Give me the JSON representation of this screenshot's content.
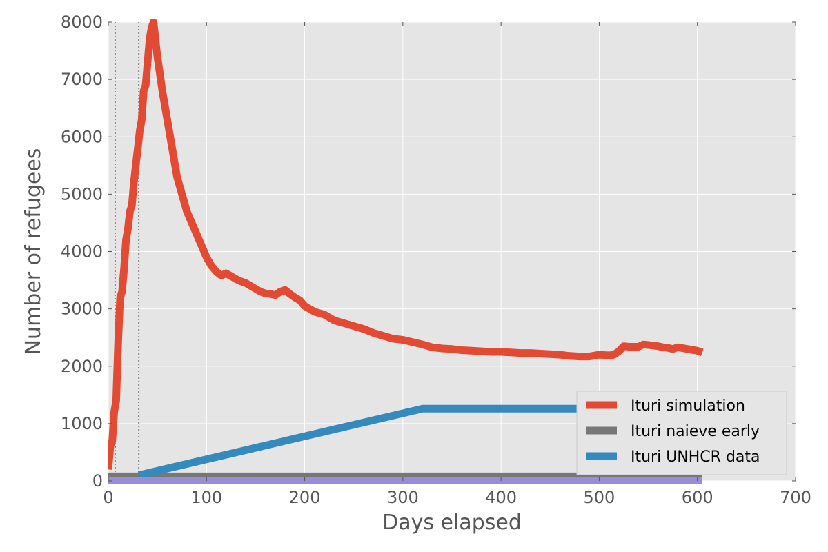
{
  "chart_data": {
    "type": "line",
    "title": "",
    "xlabel": "Days elapsed",
    "ylabel": "Number of refugees",
    "xlim": [
      0,
      700
    ],
    "ylim": [
      0,
      8000
    ],
    "xticks": [
      "0",
      "100",
      "200",
      "300",
      "400",
      "500",
      "600",
      "700"
    ],
    "yticks": [
      "0",
      "1000",
      "2000",
      "3000",
      "4000",
      "5000",
      "6000",
      "7000",
      "8000"
    ],
    "grid": true,
    "legend_position": "bottom-right",
    "vlines": [
      7,
      31
    ],
    "series": [
      {
        "name": "Ituri simulation",
        "color": "#e24a33",
        "x": [
          0,
          2,
          4,
          6,
          8,
          10,
          12,
          14,
          16,
          18,
          20,
          22,
          24,
          26,
          28,
          30,
          32,
          34,
          36,
          38,
          40,
          42,
          44,
          46,
          48,
          50,
          55,
          60,
          65,
          70,
          75,
          80,
          85,
          90,
          95,
          100,
          105,
          110,
          115,
          120,
          125,
          130,
          135,
          140,
          145,
          150,
          155,
          160,
          165,
          170,
          175,
          180,
          185,
          190,
          195,
          200,
          210,
          220,
          230,
          240,
          250,
          260,
          270,
          280,
          290,
          300,
          310,
          320,
          330,
          340,
          350,
          360,
          370,
          380,
          390,
          400,
          410,
          420,
          430,
          440,
          450,
          460,
          470,
          480,
          490,
          500,
          510,
          515,
          520,
          525,
          530,
          535,
          540,
          545,
          550,
          555,
          560,
          565,
          570,
          575,
          580,
          590,
          600,
          605
        ],
        "y": [
          200,
          600,
          700,
          1200,
          1400,
          2400,
          3200,
          3300,
          3700,
          4200,
          4400,
          4700,
          4800,
          5200,
          5500,
          5800,
          6100,
          6300,
          6800,
          6900,
          7300,
          7700,
          7900,
          8000,
          7700,
          7400,
          6800,
          6300,
          5800,
          5300,
          5000,
          4700,
          4500,
          4300,
          4100,
          3900,
          3750,
          3650,
          3580,
          3620,
          3570,
          3520,
          3480,
          3450,
          3400,
          3350,
          3300,
          3270,
          3260,
          3240,
          3300,
          3330,
          3260,
          3200,
          3150,
          3050,
          2950,
          2900,
          2800,
          2750,
          2700,
          2650,
          2580,
          2530,
          2480,
          2460,
          2420,
          2380,
          2330,
          2310,
          2300,
          2280,
          2270,
          2260,
          2250,
          2250,
          2240,
          2230,
          2230,
          2220,
          2210,
          2200,
          2180,
          2170,
          2170,
          2200,
          2190,
          2200,
          2260,
          2350,
          2340,
          2340,
          2340,
          2380,
          2370,
          2360,
          2350,
          2330,
          2320,
          2300,
          2330,
          2300,
          2270,
          2240
        ]
      },
      {
        "name": "Ituri naieve early",
        "color": "#777777",
        "x": [
          0,
          605
        ],
        "y": [
          80,
          80
        ]
      },
      {
        "name": "Ituri UNHCR data",
        "color": "#348abd",
        "x": [
          31,
          320,
          520
        ],
        "y": [
          100,
          1260,
          1260
        ]
      },
      {
        "name": "",
        "color": "#988ed5",
        "x": [
          0,
          605
        ],
        "y": [
          5,
          5
        ]
      }
    ]
  }
}
